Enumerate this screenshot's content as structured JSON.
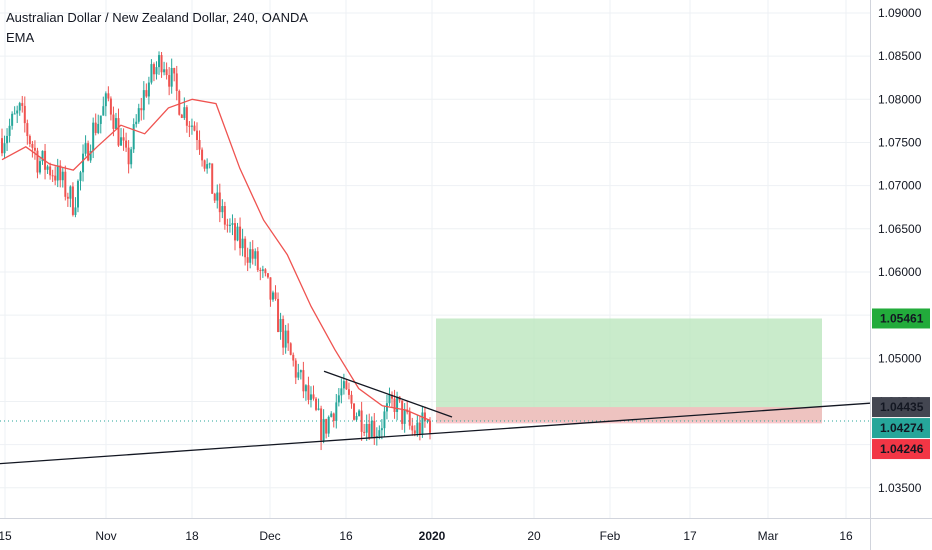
{
  "header": {
    "title": "Australian Dollar / New Zealand Dollar, 240, OANDA",
    "indicator": "EMA"
  },
  "colors": {
    "candle_up": "#26a69a",
    "candle_down": "#ef5350",
    "ema": "#ef5350",
    "grid": "#eef1f4",
    "profit_zone": "#b7e4b9",
    "loss_zone": "#f7b9bd",
    "current_price_line": "#26a69a",
    "trendline": "#131722",
    "label_green": "#22ab3b",
    "label_dark": "#434651",
    "label_teal": "#26a69a",
    "label_red": "#f23645"
  },
  "chart_data": {
    "type": "candlestick",
    "title": "Australian Dollar / New Zealand Dollar, 240, OANDA",
    "indicator": "EMA",
    "y_range": [
      1.0315,
      1.0915
    ],
    "y_ticks": [
      "1.09000",
      "1.08500",
      "1.08000",
      "1.07500",
      "1.07000",
      "1.06500",
      "1.06000",
      "1.05500",
      "1.05000",
      "1.04500",
      "1.04000",
      "1.03500"
    ],
    "x_ticks": [
      "15",
      "Nov",
      "18",
      "Dec",
      "16",
      "2020",
      "20",
      "Feb",
      "17",
      "Mar",
      "16"
    ],
    "x_ticks_bold": [
      "2020"
    ],
    "price_path": [
      [
        "15",
        1.0755
      ],
      [
        "15",
        1.0785
      ],
      [
        "15",
        1.073
      ],
      [
        "15",
        1.0715
      ],
      [
        "15",
        1.068
      ],
      [
        "Nov",
        1.076
      ],
      [
        "Nov",
        1.08
      ],
      [
        "Nov",
        1.0725
      ],
      [
        "Nov",
        1.081
      ],
      [
        "Nov",
        1.085
      ],
      [
        "Nov",
        1.0795
      ],
      [
        "Nov",
        1.076
      ],
      [
        "18",
        1.068
      ],
      [
        "18",
        1.064
      ],
      [
        "18",
        1.062
      ],
      [
        "18",
        1.0575
      ],
      [
        "Dec",
        1.051
      ],
      [
        "Dec",
        1.046
      ],
      [
        "Dec",
        1.0415
      ],
      [
        "16",
        1.0462
      ],
      [
        "16",
        1.0435
      ],
      [
        "16",
        1.0418
      ],
      [
        "16",
        1.045
      ],
      [
        "2020",
        1.0415
      ],
      [
        "2020",
        1.0427
      ]
    ],
    "ema_path": [
      [
        "15",
        1.073
      ],
      [
        "15",
        1.0745
      ],
      [
        "15",
        1.0725
      ],
      [
        "15",
        1.0718
      ],
      [
        "Nov",
        1.0745
      ],
      [
        "Nov",
        1.077
      ],
      [
        "Nov",
        1.076
      ],
      [
        "Nov",
        1.079
      ],
      [
        "Nov",
        1.08
      ],
      [
        "Nov",
        1.0795
      ],
      [
        "18",
        1.072
      ],
      [
        "18",
        1.066
      ],
      [
        "18",
        1.062
      ],
      [
        "Dec",
        1.056
      ],
      [
        "Dec",
        1.051
      ],
      [
        "16",
        1.0465
      ],
      [
        "16",
        1.0445
      ],
      [
        "16",
        1.044
      ],
      [
        "2020",
        1.0428
      ]
    ],
    "position": {
      "type": "long",
      "entry": 1.04274,
      "target": 1.05461,
      "stop": 1.04246
    },
    "trendlines": [
      {
        "name": "support",
        "from": 1.0378,
        "to": 1.0448
      },
      {
        "name": "resistance",
        "from": 1.0485,
        "to": 1.0432
      }
    ],
    "price_labels": {
      "target": "1.05461",
      "trendline": "1.04435",
      "current": "1.04274",
      "stop": "1.04246"
    }
  }
}
